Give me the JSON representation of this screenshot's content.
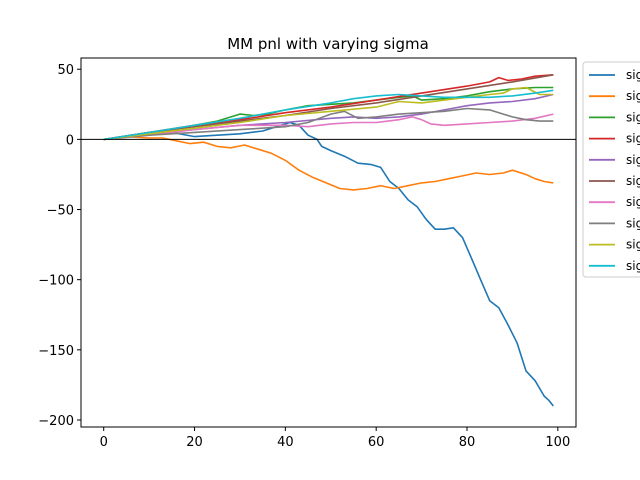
{
  "chart_data": {
    "type": "line",
    "title": "MM pnl with varying sigma",
    "xlabel": "",
    "ylabel": "",
    "xlim": [
      -5,
      104
    ],
    "ylim": [
      -205,
      58
    ],
    "xticks": [
      0,
      20,
      40,
      60,
      80,
      100
    ],
    "yticks": [
      50,
      0,
      -50,
      -100,
      -150,
      -200
    ],
    "ytick_labels": [
      "50",
      "0",
      "−50",
      "−100",
      "−150",
      "−200"
    ],
    "hline": 0,
    "grid": false,
    "legend_placement": "outside-right",
    "series": [
      {
        "name": "sig",
        "color": "#1f77b4",
        "points": [
          [
            0,
            0
          ],
          [
            5,
            2
          ],
          [
            10,
            4
          ],
          [
            15,
            5
          ],
          [
            20,
            2
          ],
          [
            25,
            3
          ],
          [
            30,
            4
          ],
          [
            35,
            6
          ],
          [
            38,
            9
          ],
          [
            41,
            12
          ],
          [
            43,
            10
          ],
          [
            45,
            3
          ],
          [
            47,
            0
          ],
          [
            48,
            -5
          ],
          [
            50,
            -8
          ],
          [
            53,
            -12
          ],
          [
            56,
            -17
          ],
          [
            59,
            -18
          ],
          [
            61,
            -20
          ],
          [
            63,
            -30
          ],
          [
            65,
            -35
          ],
          [
            67,
            -43
          ],
          [
            69,
            -48
          ],
          [
            71,
            -57
          ],
          [
            73,
            -64
          ],
          [
            75,
            -64
          ],
          [
            77,
            -63
          ],
          [
            79,
            -70
          ],
          [
            81,
            -85
          ],
          [
            83,
            -100
          ],
          [
            85,
            -115
          ],
          [
            87,
            -120
          ],
          [
            89,
            -132
          ],
          [
            91,
            -145
          ],
          [
            93,
            -165
          ],
          [
            95,
            -172
          ],
          [
            97,
            -183
          ],
          [
            98,
            -186
          ],
          [
            99,
            -190
          ]
        ]
      },
      {
        "name": "sig",
        "color": "#ff7f0e",
        "points": [
          [
            0,
            0
          ],
          [
            5,
            2
          ],
          [
            10,
            1
          ],
          [
            13,
            1
          ],
          [
            16,
            -1
          ],
          [
            19,
            -3
          ],
          [
            22,
            -2
          ],
          [
            25,
            -5
          ],
          [
            28,
            -6
          ],
          [
            31,
            -4
          ],
          [
            34,
            -7
          ],
          [
            37,
            -10
          ],
          [
            40,
            -15
          ],
          [
            43,
            -22
          ],
          [
            46,
            -27
          ],
          [
            49,
            -31
          ],
          [
            52,
            -35
          ],
          [
            55,
            -36
          ],
          [
            58,
            -35
          ],
          [
            61,
            -33
          ],
          [
            64,
            -35
          ],
          [
            67,
            -33
          ],
          [
            70,
            -31
          ],
          [
            73,
            -30
          ],
          [
            76,
            -28
          ],
          [
            79,
            -26
          ],
          [
            82,
            -24
          ],
          [
            85,
            -25
          ],
          [
            88,
            -24
          ],
          [
            90,
            -22
          ],
          [
            93,
            -25
          ],
          [
            95,
            -28
          ],
          [
            97,
            -30
          ],
          [
            99,
            -31
          ]
        ]
      },
      {
        "name": "sig",
        "color": "#2ca02c",
        "points": [
          [
            0,
            0
          ],
          [
            5,
            2
          ],
          [
            10,
            5
          ],
          [
            15,
            7
          ],
          [
            20,
            10
          ],
          [
            25,
            13
          ],
          [
            30,
            18
          ],
          [
            33,
            17
          ],
          [
            36,
            18
          ],
          [
            40,
            21
          ],
          [
            45,
            24
          ],
          [
            50,
            25
          ],
          [
            55,
            26
          ],
          [
            60,
            28
          ],
          [
            65,
            30
          ],
          [
            68,
            31
          ],
          [
            70,
            28
          ],
          [
            75,
            29
          ],
          [
            80,
            31
          ],
          [
            85,
            34
          ],
          [
            90,
            36
          ],
          [
            95,
            37
          ],
          [
            99,
            37
          ]
        ]
      },
      {
        "name": "sig",
        "color": "#d62728",
        "points": [
          [
            0,
            0
          ],
          [
            10,
            5
          ],
          [
            20,
            10
          ],
          [
            30,
            14
          ],
          [
            40,
            19
          ],
          [
            50,
            23
          ],
          [
            60,
            28
          ],
          [
            70,
            33
          ],
          [
            80,
            38
          ],
          [
            85,
            41
          ],
          [
            87,
            44
          ],
          [
            89,
            42
          ],
          [
            92,
            43
          ],
          [
            95,
            45
          ],
          [
            99,
            46
          ]
        ]
      },
      {
        "name": "sig",
        "color": "#9467bd",
        "points": [
          [
            0,
            0
          ],
          [
            10,
            4
          ],
          [
            20,
            7
          ],
          [
            30,
            10
          ],
          [
            40,
            12
          ],
          [
            50,
            15
          ],
          [
            55,
            16
          ],
          [
            60,
            15
          ],
          [
            65,
            16
          ],
          [
            70,
            18
          ],
          [
            75,
            21
          ],
          [
            80,
            24
          ],
          [
            85,
            26
          ],
          [
            90,
            27
          ],
          [
            95,
            29
          ],
          [
            99,
            32
          ]
        ]
      },
      {
        "name": "sig",
        "color": "#8c564b",
        "points": [
          [
            0,
            0
          ],
          [
            10,
            5
          ],
          [
            20,
            9
          ],
          [
            30,
            13
          ],
          [
            40,
            17
          ],
          [
            50,
            22
          ],
          [
            60,
            26
          ],
          [
            70,
            31
          ],
          [
            80,
            36
          ],
          [
            90,
            41
          ],
          [
            99,
            46
          ]
        ]
      },
      {
        "name": "sig",
        "color": "#e377c2",
        "points": [
          [
            0,
            0
          ],
          [
            10,
            3
          ],
          [
            20,
            7
          ],
          [
            30,
            10
          ],
          [
            40,
            10
          ],
          [
            45,
            9
          ],
          [
            50,
            11
          ],
          [
            55,
            12
          ],
          [
            60,
            12
          ],
          [
            65,
            14
          ],
          [
            68,
            16
          ],
          [
            70,
            14
          ],
          [
            72,
            11
          ],
          [
            75,
            10
          ],
          [
            80,
            11
          ],
          [
            85,
            12
          ],
          [
            90,
            13
          ],
          [
            95,
            15
          ],
          [
            99,
            18
          ]
        ]
      },
      {
        "name": "sig",
        "color": "#7f7f7f",
        "points": [
          [
            0,
            0
          ],
          [
            10,
            3
          ],
          [
            20,
            5
          ],
          [
            30,
            7
          ],
          [
            40,
            9
          ],
          [
            45,
            12
          ],
          [
            50,
            18
          ],
          [
            53,
            20
          ],
          [
            56,
            15
          ],
          [
            60,
            16
          ],
          [
            65,
            18
          ],
          [
            70,
            19
          ],
          [
            75,
            20
          ],
          [
            80,
            22
          ],
          [
            85,
            21
          ],
          [
            88,
            18
          ],
          [
            90,
            16
          ],
          [
            93,
            14
          ],
          [
            96,
            13
          ],
          [
            99,
            13
          ]
        ]
      },
      {
        "name": "sig",
        "color": "#bcbd22",
        "points": [
          [
            0,
            0
          ],
          [
            10,
            4
          ],
          [
            20,
            8
          ],
          [
            30,
            12
          ],
          [
            40,
            17
          ],
          [
            50,
            20
          ],
          [
            60,
            23
          ],
          [
            65,
            27
          ],
          [
            70,
            26
          ],
          [
            75,
            28
          ],
          [
            80,
            30
          ],
          [
            85,
            32
          ],
          [
            88,
            33
          ],
          [
            90,
            36
          ],
          [
            93,
            37
          ],
          [
            96,
            32
          ],
          [
            99,
            32
          ]
        ]
      },
      {
        "name": "sig",
        "color": "#17becf",
        "points": [
          [
            0,
            0
          ],
          [
            10,
            5
          ],
          [
            20,
            10
          ],
          [
            30,
            15
          ],
          [
            40,
            21
          ],
          [
            50,
            26
          ],
          [
            55,
            29
          ],
          [
            60,
            31
          ],
          [
            65,
            32
          ],
          [
            70,
            31
          ],
          [
            75,
            30
          ],
          [
            80,
            30
          ],
          [
            85,
            30
          ],
          [
            90,
            31
          ],
          [
            95,
            33
          ],
          [
            99,
            35
          ]
        ]
      }
    ]
  }
}
